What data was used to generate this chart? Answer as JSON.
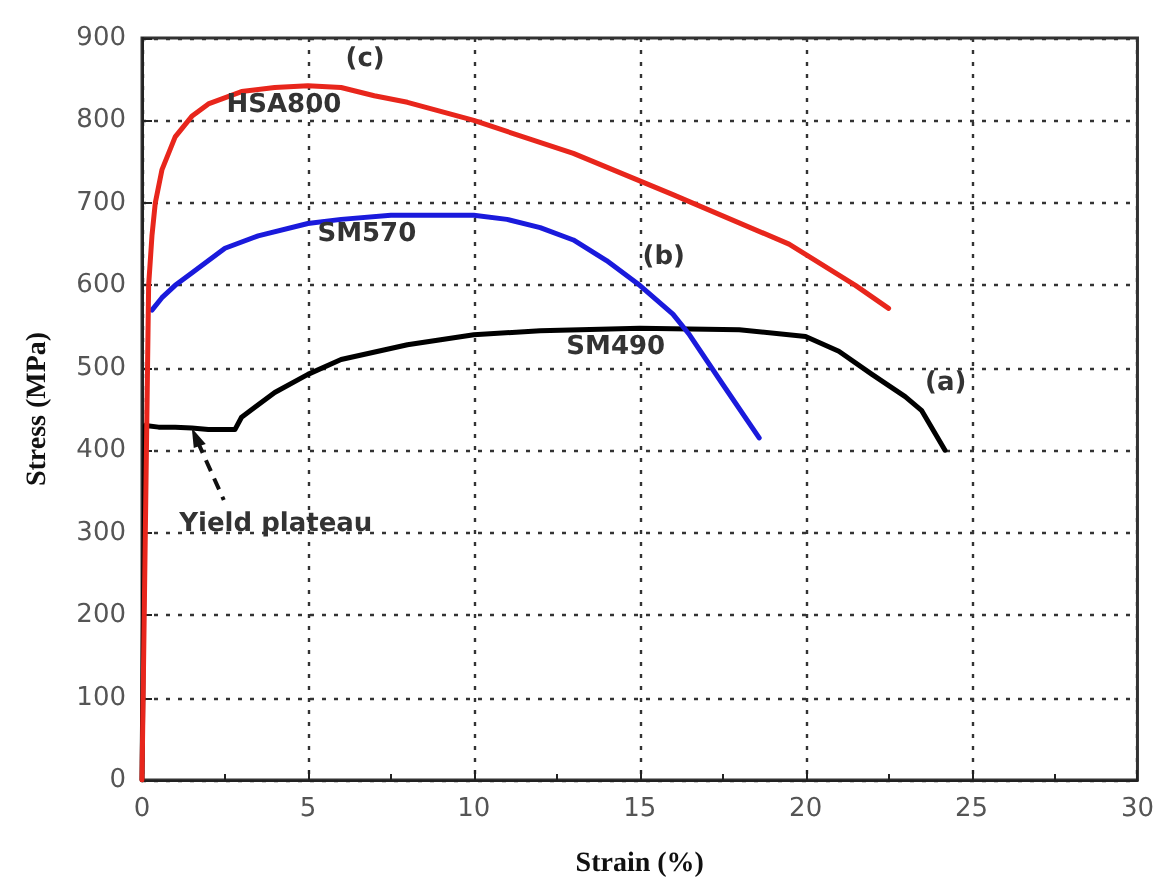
{
  "chart_data": {
    "type": "line",
    "xlabel": "Strain (%)",
    "ylabel": "Stress (MPa)",
    "xlim": [
      0,
      30
    ],
    "ylim": [
      0,
      900
    ],
    "xticks": [
      0,
      5,
      10,
      15,
      20,
      25,
      30
    ],
    "yticks": [
      0,
      100,
      200,
      300,
      400,
      500,
      600,
      700,
      800,
      900
    ],
    "grid": true,
    "marker": "none",
    "line_style": "solid",
    "series": [
      {
        "name": "SM490",
        "color": "#000000",
        "x": [
          0,
          0.1,
          0.5,
          1,
          1.5,
          2,
          2.8,
          3,
          4,
          5,
          6,
          8,
          10,
          12,
          15,
          18,
          20,
          21,
          22,
          23,
          23.5,
          24.2
        ],
        "values": [
          0,
          430,
          428,
          428,
          427,
          425,
          425,
          440,
          470,
          492,
          510,
          528,
          540,
          545,
          548,
          546,
          538,
          520,
          492,
          465,
          448,
          400
        ]
      },
      {
        "name": "SM570",
        "color": "#1a1adc",
        "x": [
          0.3,
          0.6,
          1,
          1.5,
          2.5,
          3.5,
          5,
          6,
          7.5,
          10,
          11,
          12,
          13,
          14,
          15,
          16,
          16.5,
          17.5,
          18.6
        ],
        "values": [
          570,
          585,
          600,
          615,
          645,
          660,
          675,
          680,
          685,
          685,
          680,
          670,
          655,
          630,
          600,
          565,
          540,
          480,
          415
        ]
      },
      {
        "name": "HSA800",
        "color": "#e8261c",
        "x": [
          0,
          0.1,
          0.2,
          0.3,
          0.4,
          0.6,
          1,
          1.5,
          2,
          3,
          4,
          5,
          6,
          7,
          8,
          10,
          13,
          16,
          19.5,
          21.5,
          22.5
        ],
        "values": [
          0,
          300,
          600,
          660,
          700,
          740,
          780,
          805,
          820,
          835,
          840,
          842,
          840,
          830,
          822,
          800,
          760,
          710,
          650,
          600,
          572
        ]
      }
    ],
    "annotations": [
      {
        "text": "(c)",
        "x": 6,
        "y": 840
      },
      {
        "text": "(b)",
        "x": 15,
        "y": 600
      },
      {
        "text": "(a)",
        "x": 23.5,
        "y": 448
      },
      {
        "text": "Yield plateau",
        "x": 1.5,
        "y": 427
      }
    ]
  }
}
